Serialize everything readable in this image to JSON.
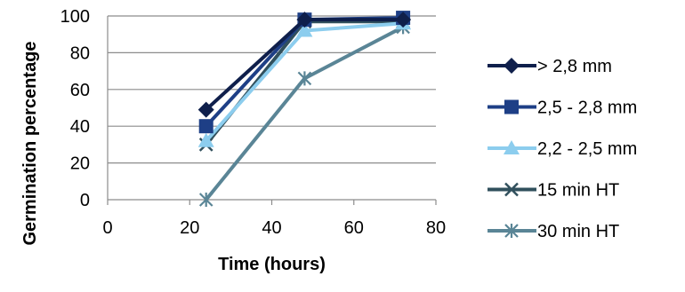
{
  "chart_data": {
    "type": "line",
    "title": "",
    "xlabel": "Time (hours)",
    "ylabel": "Germination percentage",
    "xlim": [
      0,
      80
    ],
    "ylim": [
      0,
      100
    ],
    "x_ticks": [
      0,
      20,
      40,
      60,
      80
    ],
    "y_ticks": [
      0,
      20,
      40,
      60,
      80,
      100
    ],
    "grid": "horizontal",
    "legend_position": "right",
    "series": [
      {
        "name": "> 2,8 mm",
        "color": "#0f1f4b",
        "marker": "diamond",
        "x": [
          24,
          48,
          72
        ],
        "y": [
          49,
          98,
          98
        ]
      },
      {
        "name": "2,5 - 2,8 mm",
        "color": "#1e3f86",
        "marker": "square",
        "x": [
          24,
          48,
          72
        ],
        "y": [
          40,
          98,
          99
        ]
      },
      {
        "name": "2,2 - 2,5 mm",
        "color": "#8ccdee",
        "marker": "triangle",
        "x": [
          24,
          48,
          72
        ],
        "y": [
          32,
          92,
          96
        ]
      },
      {
        "name": "15 min HT",
        "color": "#31505d",
        "marker": "x",
        "x": [
          24,
          48,
          72
        ],
        "y": [
          30,
          97,
          97
        ]
      },
      {
        "name": "30 min HT",
        "color": "#5a8596",
        "marker": "star",
        "x": [
          24,
          48,
          72
        ],
        "y": [
          0,
          66,
          94
        ]
      }
    ]
  }
}
